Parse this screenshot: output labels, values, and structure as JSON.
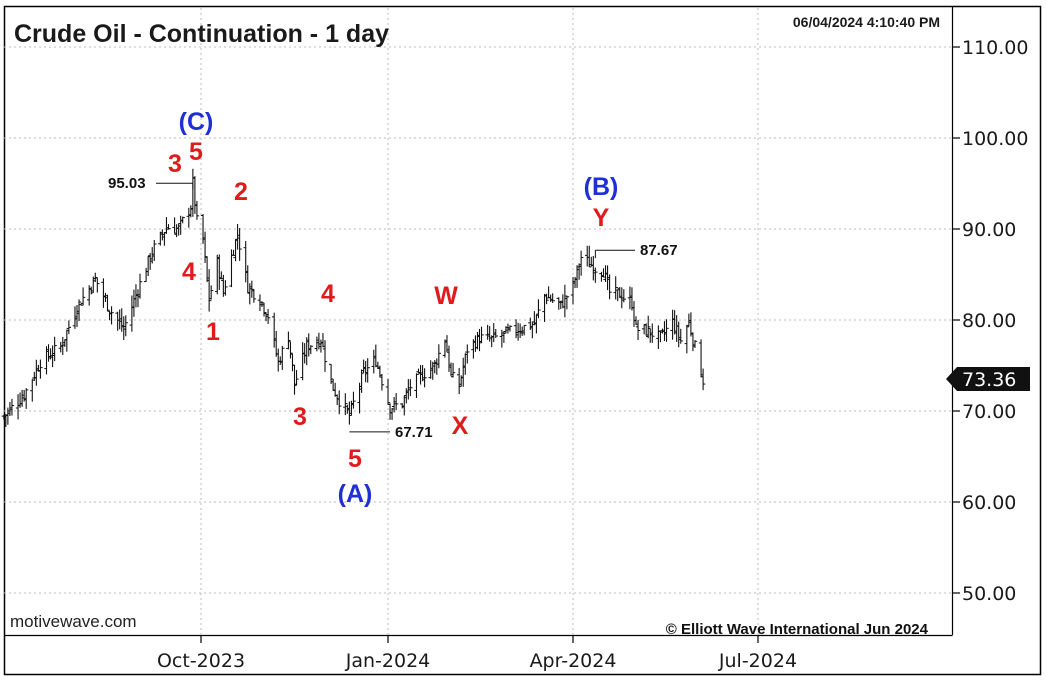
{
  "chart_data": {
    "type": "ohlc",
    "title": "Crude Oil - Continuation - 1 day",
    "timestamp": "06/04/2024 4:10:40 PM",
    "ylim": [
      45,
      113
    ],
    "y_ticks": [
      "110.00",
      "100.00",
      "90.00",
      "80.00",
      "70.00",
      "60.00",
      "50.00"
    ],
    "x_ticks": [
      "Oct-2023",
      "Jan-2024",
      "Apr-2024",
      "Jul-2024"
    ],
    "grid": true,
    "last_price": "73.36",
    "price_labels": [
      {
        "text": "95.03",
        "date": "2023-09-27",
        "value": 95.03
      },
      {
        "text": "67.71",
        "date": "2023-12-13",
        "value": 67.71
      },
      {
        "text": "87.67",
        "date": "2024-04-12",
        "value": 87.67
      }
    ],
    "wave_labels": [
      {
        "text": "(C)",
        "color": "#1f2fd6"
      },
      {
        "text": "3",
        "color": "#e01b1b"
      },
      {
        "text": "5",
        "color": "#e01b1b"
      },
      {
        "text": "2",
        "color": "#e01b1b"
      },
      {
        "text": "4",
        "color": "#e01b1b"
      },
      {
        "text": "1",
        "color": "#e01b1b"
      },
      {
        "text": "4",
        "color": "#e01b1b"
      },
      {
        "text": "3",
        "color": "#e01b1b"
      },
      {
        "text": "5",
        "color": "#e01b1b"
      },
      {
        "text": "(A)",
        "color": "#1f2fd6"
      },
      {
        "text": "W",
        "color": "#e01b1b"
      },
      {
        "text": "X",
        "color": "#e01b1b"
      },
      {
        "text": "(B)",
        "color": "#1f2fd6"
      },
      {
        "text": "Y",
        "color": "#e01b1b"
      }
    ],
    "series": [
      {
        "points": [
          [
            "2023-06-26",
            69.4
          ],
          [
            "2023-07-06",
            71.8
          ],
          [
            "2023-07-14",
            75.4
          ],
          [
            "2023-07-24",
            77.1
          ],
          [
            "2023-08-01",
            81.4
          ],
          [
            "2023-08-10",
            84.5
          ],
          [
            "2023-08-17",
            81.2
          ],
          [
            "2023-08-24",
            79.0
          ],
          [
            "2023-08-31",
            83.4
          ],
          [
            "2023-09-07",
            87.5
          ],
          [
            "2023-09-14",
            90.2
          ],
          [
            "2023-09-20",
            90.0
          ],
          [
            "2023-09-26",
            92.5
          ],
          [
            "2023-09-27",
            95.0
          ],
          [
            "2023-09-29",
            90.8
          ],
          [
            "2023-10-02",
            88.8
          ],
          [
            "2023-10-04",
            84.2
          ],
          [
            "2023-10-05",
            82.3
          ],
          [
            "2023-10-09",
            86.3
          ],
          [
            "2023-10-12",
            83.0
          ],
          [
            "2023-10-16",
            87.0
          ],
          [
            "2023-10-19",
            89.4
          ],
          [
            "2023-10-24",
            83.7
          ],
          [
            "2023-10-30",
            82.3
          ],
          [
            "2023-11-03",
            80.5
          ],
          [
            "2023-11-08",
            75.3
          ],
          [
            "2023-11-13",
            78.3
          ],
          [
            "2023-11-16",
            72.9
          ],
          [
            "2023-11-22",
            77.1
          ],
          [
            "2023-11-29",
            77.9
          ],
          [
            "2023-12-04",
            73.0
          ],
          [
            "2023-12-08",
            71.2
          ],
          [
            "2023-12-13",
            69.5
          ],
          [
            "2023-12-20",
            74.2
          ],
          [
            "2023-12-26",
            75.6
          ],
          [
            "2024-01-02",
            70.4
          ],
          [
            "2024-01-08",
            70.8
          ],
          [
            "2024-01-12",
            72.7
          ],
          [
            "2024-01-18",
            74.0
          ],
          [
            "2024-01-24",
            75.1
          ],
          [
            "2024-01-29",
            78.0
          ],
          [
            "2024-02-01",
            73.8
          ],
          [
            "2024-02-05",
            72.8
          ],
          [
            "2024-02-09",
            76.8
          ],
          [
            "2024-02-15",
            78.0
          ],
          [
            "2024-02-21",
            77.9
          ],
          [
            "2024-02-28",
            78.5
          ],
          [
            "2024-03-06",
            79.1
          ],
          [
            "2024-03-13",
            79.6
          ],
          [
            "2024-03-18",
            82.7
          ],
          [
            "2024-03-26",
            81.6
          ],
          [
            "2024-04-01",
            83.7
          ],
          [
            "2024-04-05",
            86.9
          ],
          [
            "2024-04-12",
            85.7
          ],
          [
            "2024-04-16",
            85.4
          ],
          [
            "2024-04-19",
            83.0
          ],
          [
            "2024-04-24",
            82.8
          ],
          [
            "2024-04-30",
            81.9
          ],
          [
            "2024-05-02",
            79.0
          ],
          [
            "2024-05-08",
            78.8
          ],
          [
            "2024-05-14",
            78.0
          ],
          [
            "2024-05-20",
            79.8
          ],
          [
            "2024-05-24",
            77.7
          ],
          [
            "2024-05-28",
            79.8
          ],
          [
            "2024-05-31",
            77.0
          ],
          [
            "2024-06-04",
            73.4
          ]
        ]
      }
    ]
  },
  "footer": {
    "left": "motivewave.com",
    "right": "© Elliott Wave International Jun 2024"
  }
}
